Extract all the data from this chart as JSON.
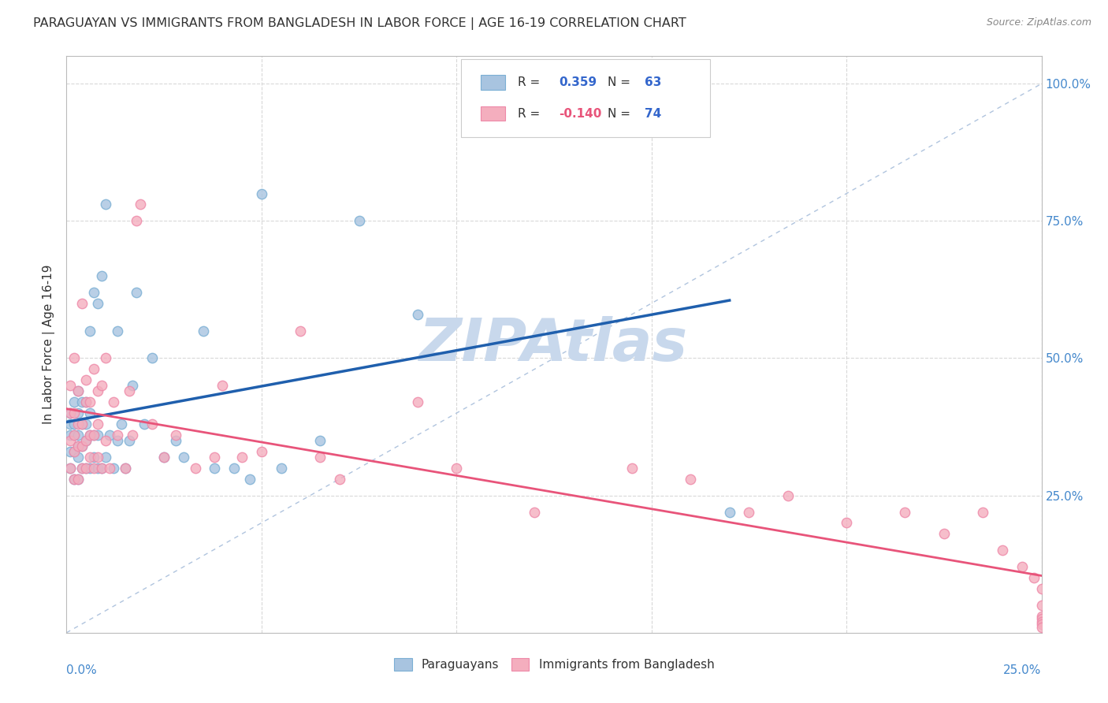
{
  "title": "PARAGUAYAN VS IMMIGRANTS FROM BANGLADESH IN LABOR FORCE | AGE 16-19 CORRELATION CHART",
  "source": "Source: ZipAtlas.com",
  "ylabel": "In Labor Force | Age 16-19",
  "ylabel_right_ticks": [
    "25.0%",
    "50.0%",
    "75.0%",
    "100.0%"
  ],
  "ylabel_right_vals": [
    0.25,
    0.5,
    0.75,
    1.0
  ],
  "xmin": 0.0,
  "xmax": 0.25,
  "ymin": 0.0,
  "ymax": 1.05,
  "blue_R": 0.359,
  "blue_N": 63,
  "pink_R": -0.14,
  "pink_N": 74,
  "blue_color": "#A8C4E0",
  "blue_edge_color": "#7BAFD4",
  "pink_color": "#F4AEBE",
  "pink_edge_color": "#EE88A8",
  "blue_line_color": "#1F5FAD",
  "pink_line_color": "#E8547A",
  "diag_line_color": "#B0C4DE",
  "grid_color": "#DDDDDD",
  "watermark": "ZIPAtlas",
  "watermark_color": "#C8D8EC",
  "blue_scatter_x": [
    0.001,
    0.001,
    0.001,
    0.001,
    0.001,
    0.002,
    0.002,
    0.002,
    0.002,
    0.002,
    0.003,
    0.003,
    0.003,
    0.003,
    0.003,
    0.003,
    0.004,
    0.004,
    0.004,
    0.004,
    0.005,
    0.005,
    0.005,
    0.005,
    0.006,
    0.006,
    0.006,
    0.006,
    0.007,
    0.007,
    0.007,
    0.008,
    0.008,
    0.008,
    0.009,
    0.009,
    0.01,
    0.01,
    0.011,
    0.012,
    0.013,
    0.013,
    0.014,
    0.015,
    0.016,
    0.017,
    0.018,
    0.02,
    0.022,
    0.025,
    0.028,
    0.03,
    0.035,
    0.038,
    0.043,
    0.047,
    0.05,
    0.055,
    0.065,
    0.075,
    0.09,
    0.11,
    0.17
  ],
  "blue_scatter_y": [
    0.3,
    0.33,
    0.36,
    0.38,
    0.4,
    0.28,
    0.33,
    0.36,
    0.38,
    0.42,
    0.28,
    0.32,
    0.34,
    0.36,
    0.4,
    0.44,
    0.3,
    0.34,
    0.38,
    0.42,
    0.3,
    0.35,
    0.38,
    0.42,
    0.3,
    0.36,
    0.4,
    0.55,
    0.32,
    0.36,
    0.62,
    0.3,
    0.36,
    0.6,
    0.3,
    0.65,
    0.32,
    0.78,
    0.36,
    0.3,
    0.35,
    0.55,
    0.38,
    0.3,
    0.35,
    0.45,
    0.62,
    0.38,
    0.5,
    0.32,
    0.35,
    0.32,
    0.55,
    0.3,
    0.3,
    0.28,
    0.8,
    0.3,
    0.35,
    0.75,
    0.58,
    1.0,
    0.22
  ],
  "pink_scatter_x": [
    0.001,
    0.001,
    0.001,
    0.001,
    0.002,
    0.002,
    0.002,
    0.002,
    0.002,
    0.003,
    0.003,
    0.003,
    0.003,
    0.004,
    0.004,
    0.004,
    0.004,
    0.005,
    0.005,
    0.005,
    0.005,
    0.006,
    0.006,
    0.006,
    0.007,
    0.007,
    0.007,
    0.008,
    0.008,
    0.008,
    0.009,
    0.009,
    0.01,
    0.01,
    0.011,
    0.012,
    0.013,
    0.015,
    0.016,
    0.017,
    0.018,
    0.019,
    0.022,
    0.025,
    0.028,
    0.033,
    0.038,
    0.04,
    0.045,
    0.05,
    0.06,
    0.065,
    0.07,
    0.09,
    0.1,
    0.12,
    0.145,
    0.16,
    0.175,
    0.185,
    0.2,
    0.215,
    0.225,
    0.235,
    0.24,
    0.245,
    0.248,
    0.25,
    0.25,
    0.25,
    0.25,
    0.25,
    0.25,
    0.25
  ],
  "pink_scatter_y": [
    0.3,
    0.35,
    0.4,
    0.45,
    0.28,
    0.33,
    0.36,
    0.4,
    0.5,
    0.28,
    0.34,
    0.38,
    0.44,
    0.3,
    0.34,
    0.38,
    0.6,
    0.3,
    0.35,
    0.42,
    0.46,
    0.32,
    0.36,
    0.42,
    0.3,
    0.36,
    0.48,
    0.32,
    0.38,
    0.44,
    0.3,
    0.45,
    0.35,
    0.5,
    0.3,
    0.42,
    0.36,
    0.3,
    0.44,
    0.36,
    0.75,
    0.78,
    0.38,
    0.32,
    0.36,
    0.3,
    0.32,
    0.45,
    0.32,
    0.33,
    0.55,
    0.32,
    0.28,
    0.42,
    0.3,
    0.22,
    0.3,
    0.28,
    0.22,
    0.25,
    0.2,
    0.22,
    0.18,
    0.22,
    0.15,
    0.12,
    0.1,
    0.08,
    0.05,
    0.03,
    0.025,
    0.02,
    0.015,
    0.01
  ]
}
